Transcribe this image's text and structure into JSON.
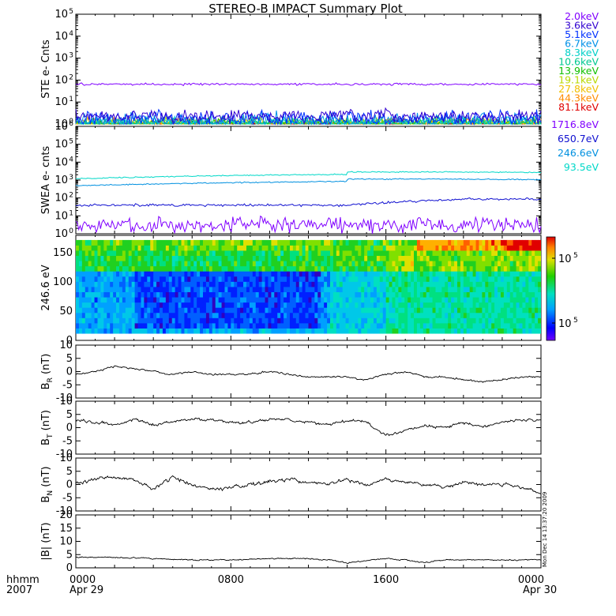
{
  "title": "STEREO-B IMPACT Summary Plot",
  "xaxis": {
    "left_labels": [
      "hhmm",
      "2007"
    ],
    "tick_labels": [
      "0000",
      "0800",
      "1600",
      "0000"
    ],
    "tick_hours": [
      0,
      8,
      16,
      24
    ],
    "date_labels": [
      "Apr 29",
      "Apr 30"
    ],
    "range_hours": [
      0,
      24
    ]
  },
  "timestamp": "Mon Dec 14 13:37:20 2009",
  "chart_data": [
    {
      "type": "line",
      "ylabel": "STE e- Cnts",
      "yscale": "log",
      "ylim": [
        1,
        100000
      ],
      "ytick_values": [
        1,
        10,
        100,
        1000,
        10000,
        100000
      ],
      "ytick_labels": [
        "10",
        "10",
        "10",
        "10",
        "10",
        "10"
      ],
      "ytick_exps": [
        "0",
        "1",
        "2",
        "3",
        "4",
        "5"
      ],
      "series": [
        {
          "name": "2.0keV",
          "color": "#8000ff",
          "level": 65,
          "noise": 0.04
        },
        {
          "name": "3.6keV",
          "color": "#3000d0",
          "level": 2.2,
          "noise": 0.25
        },
        {
          "name": "5.1keV",
          "color": "#0030ff",
          "level": 1.8,
          "noise": 0.3
        },
        {
          "name": "6.7keV",
          "color": "#0090e8",
          "level": 1.4,
          "noise": 0.3
        },
        {
          "name": "8.3keV",
          "color": "#00d0c8",
          "level": 1.2,
          "noise": 0.25
        },
        {
          "name": "10.6keV",
          "color": "#00c890",
          "level": 1.15,
          "noise": 0.2
        },
        {
          "name": "13.9keV",
          "color": "#10c000",
          "level": 1.1,
          "noise": 0.2
        },
        {
          "name": "19.1keV",
          "color": "#b8d800",
          "level": 1.1,
          "noise": 0.2
        },
        {
          "name": "27.8keV",
          "color": "#f0c000",
          "level": 1.08,
          "noise": 0.2
        },
        {
          "name": "44.3keV",
          "color": "#ff8c00",
          "level": 1.08,
          "noise": 0.2
        },
        {
          "name": "81.1keV",
          "color": "#e00000",
          "level": 1.02,
          "noise": 0.05
        }
      ]
    },
    {
      "type": "line",
      "ylabel": "SWEA e- cnts",
      "yscale": "log",
      "ylim": [
        1,
        1000000
      ],
      "ytick_values": [
        1,
        10,
        100,
        1000,
        10000,
        100000,
        1000000
      ],
      "ytick_labels": [
        "10",
        "10",
        "10",
        "10",
        "10",
        "10",
        "10"
      ],
      "ytick_exps": [
        "0",
        "1",
        "2",
        "3",
        "4",
        "5",
        "6"
      ],
      "series": [
        {
          "name": "1716.8eV",
          "color": "#8000ff",
          "level": 3,
          "noise": 0.35
        },
        {
          "name": "650.7eV",
          "color": "#1010d0",
          "level": 50,
          "noise": 0.06
        },
        {
          "name": "246.6eV",
          "color": "#0090e0",
          "level": 600,
          "noise": 0.025
        },
        {
          "name": "93.5eV",
          "color": "#00d8c8",
          "level": 1500,
          "noise": 0.025
        }
      ]
    },
    {
      "type": "heatmap",
      "ylabel": "246.6 eV",
      "ylim": [
        0,
        180
      ],
      "ytick_values": [
        0,
        50,
        100,
        150
      ],
      "ytick_labels": [
        "0",
        "50",
        "100",
        "150"
      ],
      "colorbar": {
        "scale": "log",
        "tick_labels": [
          "10",
          "10"
        ],
        "tick_exps": [
          "5",
          "5"
        ]
      }
    },
    {
      "type": "line",
      "ylabel": "B",
      "ylabel_sub": "R",
      "ylabel_unit": " (nT)",
      "ylim": [
        -10,
        10
      ],
      "ytick_values": [
        -10,
        -5,
        0,
        5,
        10
      ],
      "ytick_labels": [
        "-10",
        "-5",
        "0",
        "5",
        "10"
      ],
      "series": [
        {
          "color": "#000000",
          "knots": [
            [
              0,
              -1
            ],
            [
              1,
              0
            ],
            [
              2,
              2
            ],
            [
              3,
              1
            ],
            [
              4,
              0
            ],
            [
              5,
              -1
            ],
            [
              6,
              0
            ],
            [
              7,
              -1
            ],
            [
              8,
              -1
            ],
            [
              9,
              -1
            ],
            [
              10,
              0
            ],
            [
              11,
              -1
            ],
            [
              12,
              -2
            ],
            [
              13,
              -2
            ],
            [
              14,
              -2
            ],
            [
              15,
              -3
            ],
            [
              16,
              -1
            ],
            [
              17,
              0
            ],
            [
              18,
              -2
            ],
            [
              19,
              -2
            ],
            [
              20,
              -3
            ],
            [
              21,
              -4
            ],
            [
              22,
              -3
            ],
            [
              23,
              -2
            ],
            [
              24,
              -2
            ]
          ],
          "noise": 0.6
        }
      ]
    },
    {
      "type": "line",
      "ylabel": "B",
      "ylabel_sub": "T",
      "ylabel_unit": " (nT)",
      "ylim": [
        -10,
        10
      ],
      "ytick_values": [
        -10,
        -5,
        0,
        5,
        10
      ],
      "ytick_labels": [
        "-10",
        "-5",
        "0",
        "5",
        "10"
      ],
      "series": [
        {
          "color": "#000000",
          "knots": [
            [
              0,
              3
            ],
            [
              1,
              2
            ],
            [
              2,
              1
            ],
            [
              3,
              3
            ],
            [
              4,
              1
            ],
            [
              5,
              2
            ],
            [
              6,
              3
            ],
            [
              7,
              3
            ],
            [
              8,
              2
            ],
            [
              9,
              2
            ],
            [
              10,
              3
            ],
            [
              11,
              3
            ],
            [
              12,
              2
            ],
            [
              13,
              1
            ],
            [
              14,
              3
            ],
            [
              15,
              2
            ],
            [
              16,
              -3
            ],
            [
              17,
              -1
            ],
            [
              18,
              1
            ],
            [
              19,
              0
            ],
            [
              20,
              2
            ],
            [
              21,
              0
            ],
            [
              22,
              2
            ],
            [
              23,
              3
            ],
            [
              24,
              3
            ]
          ],
          "noise": 1.0
        }
      ]
    },
    {
      "type": "line",
      "ylabel": "B",
      "ylabel_sub": "N",
      "ylabel_unit": " (nT)",
      "ylim": [
        -10,
        10
      ],
      "ytick_values": [
        -10,
        -5,
        0,
        5,
        10
      ],
      "ytick_labels": [
        "-10",
        "-5",
        "0",
        "5",
        "10"
      ],
      "series": [
        {
          "color": "#000000",
          "knots": [
            [
              0,
              0
            ],
            [
              1,
              2
            ],
            [
              2,
              3
            ],
            [
              3,
              2
            ],
            [
              4,
              -2
            ],
            [
              5,
              3
            ],
            [
              6,
              0
            ],
            [
              7,
              -2
            ],
            [
              8,
              -1
            ],
            [
              9,
              0
            ],
            [
              10,
              1
            ],
            [
              11,
              2
            ],
            [
              12,
              1
            ],
            [
              13,
              0
            ],
            [
              14,
              2
            ],
            [
              15,
              0
            ],
            [
              16,
              2
            ],
            [
              17,
              1
            ],
            [
              18,
              0
            ],
            [
              19,
              -1
            ],
            [
              20,
              1
            ],
            [
              21,
              0
            ],
            [
              22,
              0
            ],
            [
              23,
              -1
            ],
            [
              24,
              -3
            ]
          ],
          "noise": 1.2
        }
      ]
    },
    {
      "type": "line",
      "ylabel": "|B| (nT)",
      "ylim": [
        0,
        20
      ],
      "ytick_values": [
        0,
        5,
        10,
        15,
        20
      ],
      "ytick_labels": [
        "0",
        "5",
        "10",
        "15",
        "20"
      ],
      "series": [
        {
          "color": "#000000",
          "knots": [
            [
              0,
              4
            ],
            [
              2,
              4
            ],
            [
              4,
              3.5
            ],
            [
              6,
              3
            ],
            [
              8,
              3
            ],
            [
              10,
              3.5
            ],
            [
              12,
              3.5
            ],
            [
              13,
              3
            ],
            [
              14,
              2
            ],
            [
              16,
              3.5
            ],
            [
              17,
              3
            ],
            [
              18,
              2
            ],
            [
              19,
              3
            ],
            [
              21,
              3
            ],
            [
              22,
              3
            ],
            [
              24,
              3
            ]
          ],
          "noise": 0.4
        }
      ]
    }
  ]
}
